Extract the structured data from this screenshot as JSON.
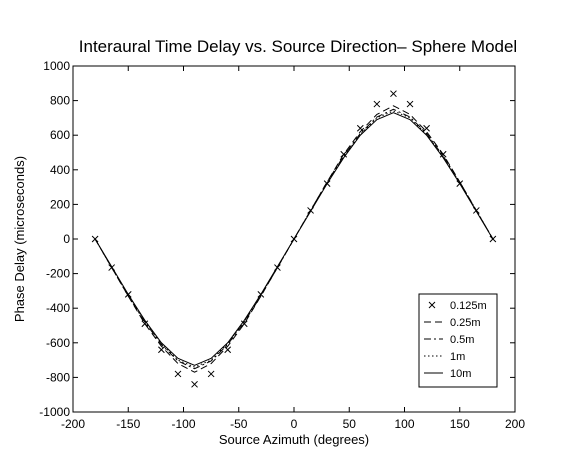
{
  "chart_data": {
    "type": "line",
    "title": "Interaural Time Delay vs. Source Direction– Sphere Model",
    "xlabel": "Source Azimuth (degrees)",
    "ylabel": "Phase Delay (microseconds)",
    "xlim": [
      -200,
      200
    ],
    "ylim": [
      -1000,
      1000
    ],
    "xticks": [
      -200,
      -150,
      -100,
      -50,
      0,
      50,
      100,
      150,
      200
    ],
    "yticks": [
      -1000,
      -800,
      -600,
      -400,
      -200,
      0,
      200,
      400,
      600,
      800,
      1000
    ],
    "grid": false,
    "legend_position": "bottom-right",
    "series": [
      {
        "name": "0.125m",
        "style": "x-markers",
        "x": [
          -180,
          -165,
          -150,
          -135,
          -120,
          -105,
          -90,
          -75,
          -60,
          -45,
          -30,
          -15,
          0,
          15,
          30,
          45,
          60,
          75,
          90,
          105,
          120,
          135,
          150,
          165,
          180
        ],
        "y": [
          0,
          -165,
          -320,
          -490,
          -640,
          -780,
          -840,
          -780,
          -640,
          -490,
          -320,
          -165,
          0,
          165,
          320,
          490,
          640,
          780,
          840,
          780,
          640,
          490,
          320,
          165,
          0
        ]
      },
      {
        "name": "0.25m",
        "style": "dashed",
        "x": [
          -180,
          -165,
          -150,
          -135,
          -120,
          -105,
          -90,
          -75,
          -60,
          -45,
          -30,
          -15,
          0,
          15,
          30,
          45,
          60,
          75,
          90,
          105,
          120,
          135,
          150,
          165,
          180
        ],
        "y": [
          0,
          -165,
          -330,
          -490,
          -620,
          -720,
          -770,
          -720,
          -620,
          -490,
          -330,
          -165,
          0,
          165,
          330,
          490,
          620,
          720,
          770,
          720,
          620,
          490,
          330,
          165,
          0
        ]
      },
      {
        "name": "0.5m",
        "style": "dashdot",
        "x": [
          -180,
          -165,
          -150,
          -135,
          -120,
          -105,
          -90,
          -75,
          -60,
          -45,
          -30,
          -15,
          0,
          15,
          30,
          45,
          60,
          75,
          90,
          105,
          120,
          135,
          150,
          165,
          180
        ],
        "y": [
          0,
          -165,
          -330,
          -480,
          -610,
          -705,
          -750,
          -705,
          -610,
          -480,
          -330,
          -165,
          0,
          165,
          330,
          480,
          610,
          705,
          750,
          705,
          610,
          480,
          330,
          165,
          0
        ]
      },
      {
        "name": "1m",
        "style": "dotted",
        "x": [
          -180,
          -165,
          -150,
          -135,
          -120,
          -105,
          -90,
          -75,
          -60,
          -45,
          -30,
          -15,
          0,
          15,
          30,
          45,
          60,
          75,
          90,
          105,
          120,
          135,
          150,
          165,
          180
        ],
        "y": [
          0,
          -165,
          -325,
          -475,
          -605,
          -700,
          -740,
          -700,
          -605,
          -475,
          -325,
          -165,
          0,
          165,
          325,
          475,
          605,
          700,
          740,
          700,
          605,
          475,
          325,
          165,
          0
        ]
      },
      {
        "name": "10m",
        "style": "solid",
        "x": [
          -180,
          -165,
          -150,
          -135,
          -120,
          -105,
          -90,
          -75,
          -60,
          -45,
          -30,
          -15,
          0,
          15,
          30,
          45,
          60,
          75,
          90,
          105,
          120,
          135,
          150,
          165,
          180
        ],
        "y": [
          0,
          -160,
          -320,
          -470,
          -600,
          -690,
          -730,
          -690,
          -600,
          -470,
          -320,
          -160,
          0,
          160,
          320,
          470,
          600,
          690,
          730,
          690,
          600,
          470,
          320,
          160,
          0
        ]
      }
    ]
  }
}
